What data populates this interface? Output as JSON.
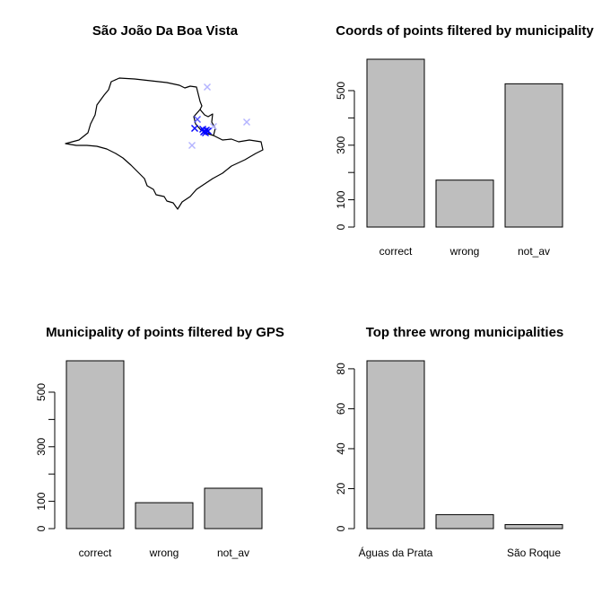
{
  "map_panel": {
    "title": "São João Da Boa Vista",
    "marker_color": "#0000ff",
    "marker_color_light": "#b3b3ff"
  },
  "chart_data": [
    {
      "type": "bar",
      "title": "Coords of points filtered by municipality",
      "categories": [
        "correct",
        "wrong",
        "not_av"
      ],
      "values": [
        615,
        172,
        525
      ],
      "ylim": [
        0,
        615
      ],
      "yticks": [
        0,
        100,
        300,
        500
      ],
      "xlabel": "",
      "ylabel": ""
    },
    {
      "type": "bar",
      "title": "Municipality of points filtered by GPS",
      "categories": [
        "correct",
        "wrong",
        "not_av"
      ],
      "values": [
        615,
        95,
        148
      ],
      "ylim": [
        0,
        615
      ],
      "yticks": [
        0,
        100,
        300,
        500
      ],
      "xlabel": "",
      "ylabel": ""
    },
    {
      "type": "bar",
      "title": "Top three wrong municipalities",
      "categories": [
        "Águas da Prata",
        "",
        "São Roque"
      ],
      "values": [
        84,
        7,
        2
      ],
      "ylim": [
        0,
        84
      ],
      "yticks": [
        0,
        20,
        40,
        60,
        80
      ],
      "xlabel": "",
      "ylabel": ""
    }
  ]
}
